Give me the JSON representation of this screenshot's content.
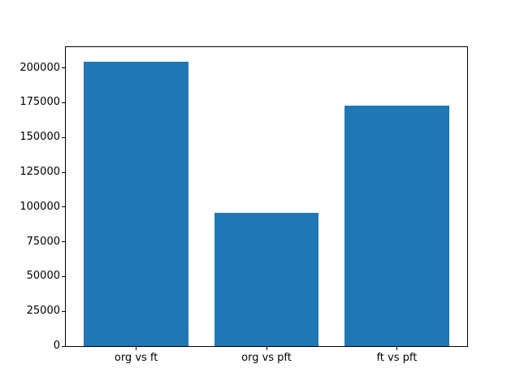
{
  "chart_data": {
    "type": "bar",
    "categories": [
      "org vs ft",
      "org vs pft",
      "ft vs pft"
    ],
    "values": [
      204700,
      95900,
      173200
    ],
    "title": "",
    "xlabel": "",
    "ylabel": "",
    "ylim": [
      0,
      215000
    ],
    "xlim": [
      -0.54,
      2.54
    ],
    "yticks": [
      0,
      25000,
      50000,
      75000,
      100000,
      125000,
      150000,
      175000,
      200000
    ],
    "ytick_labels": [
      "0",
      "25000",
      "50000",
      "75000",
      "100000",
      "125000",
      "150000",
      "175000",
      "200000"
    ],
    "bar_width": 0.8,
    "bar_color": "#1f77b4",
    "axis_color": "#000000",
    "background_color": "#ffffff",
    "grid": false,
    "legend": "none"
  }
}
